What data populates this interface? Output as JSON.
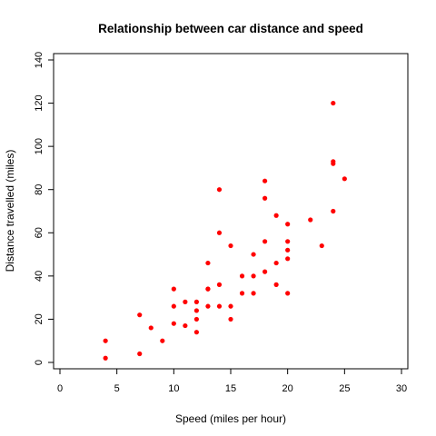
{
  "chart_data": {
    "type": "scatter",
    "title": "Relationship between car distance and speed",
    "xlabel": "Speed (miles per hour)",
    "ylabel": "Distance travelled (miles)",
    "xlim": [
      0,
      30
    ],
    "ylim": [
      0,
      140
    ],
    "xticks": [
      0,
      5,
      10,
      15,
      20,
      25,
      30
    ],
    "yticks": [
      0,
      20,
      40,
      60,
      80,
      100,
      120,
      140
    ],
    "grid": false,
    "marker_color": "#ff0000",
    "series": [
      {
        "points": [
          [
            4,
            2
          ],
          [
            4,
            10
          ],
          [
            7,
            4
          ],
          [
            7,
            22
          ],
          [
            8,
            16
          ],
          [
            9,
            10
          ],
          [
            10,
            18
          ],
          [
            10,
            26
          ],
          [
            10,
            34
          ],
          [
            11,
            17
          ],
          [
            11,
            28
          ],
          [
            12,
            14
          ],
          [
            12,
            20
          ],
          [
            12,
            24
          ],
          [
            12,
            28
          ],
          [
            13,
            26
          ],
          [
            13,
            34
          ],
          [
            13,
            34
          ],
          [
            13,
            46
          ],
          [
            14,
            26
          ],
          [
            14,
            36
          ],
          [
            14,
            60
          ],
          [
            14,
            80
          ],
          [
            15,
            20
          ],
          [
            15,
            26
          ],
          [
            15,
            54
          ],
          [
            16,
            32
          ],
          [
            16,
            40
          ],
          [
            17,
            32
          ],
          [
            17,
            40
          ],
          [
            17,
            50
          ],
          [
            18,
            42
          ],
          [
            18,
            56
          ],
          [
            18,
            76
          ],
          [
            18,
            84
          ],
          [
            19,
            36
          ],
          [
            19,
            46
          ],
          [
            19,
            68
          ],
          [
            20,
            32
          ],
          [
            20,
            48
          ],
          [
            20,
            52
          ],
          [
            20,
            56
          ],
          [
            20,
            64
          ],
          [
            22,
            66
          ],
          [
            23,
            54
          ],
          [
            24,
            70
          ],
          [
            24,
            92
          ],
          [
            24,
            93
          ],
          [
            24,
            120
          ],
          [
            25,
            85
          ]
        ]
      }
    ]
  }
}
